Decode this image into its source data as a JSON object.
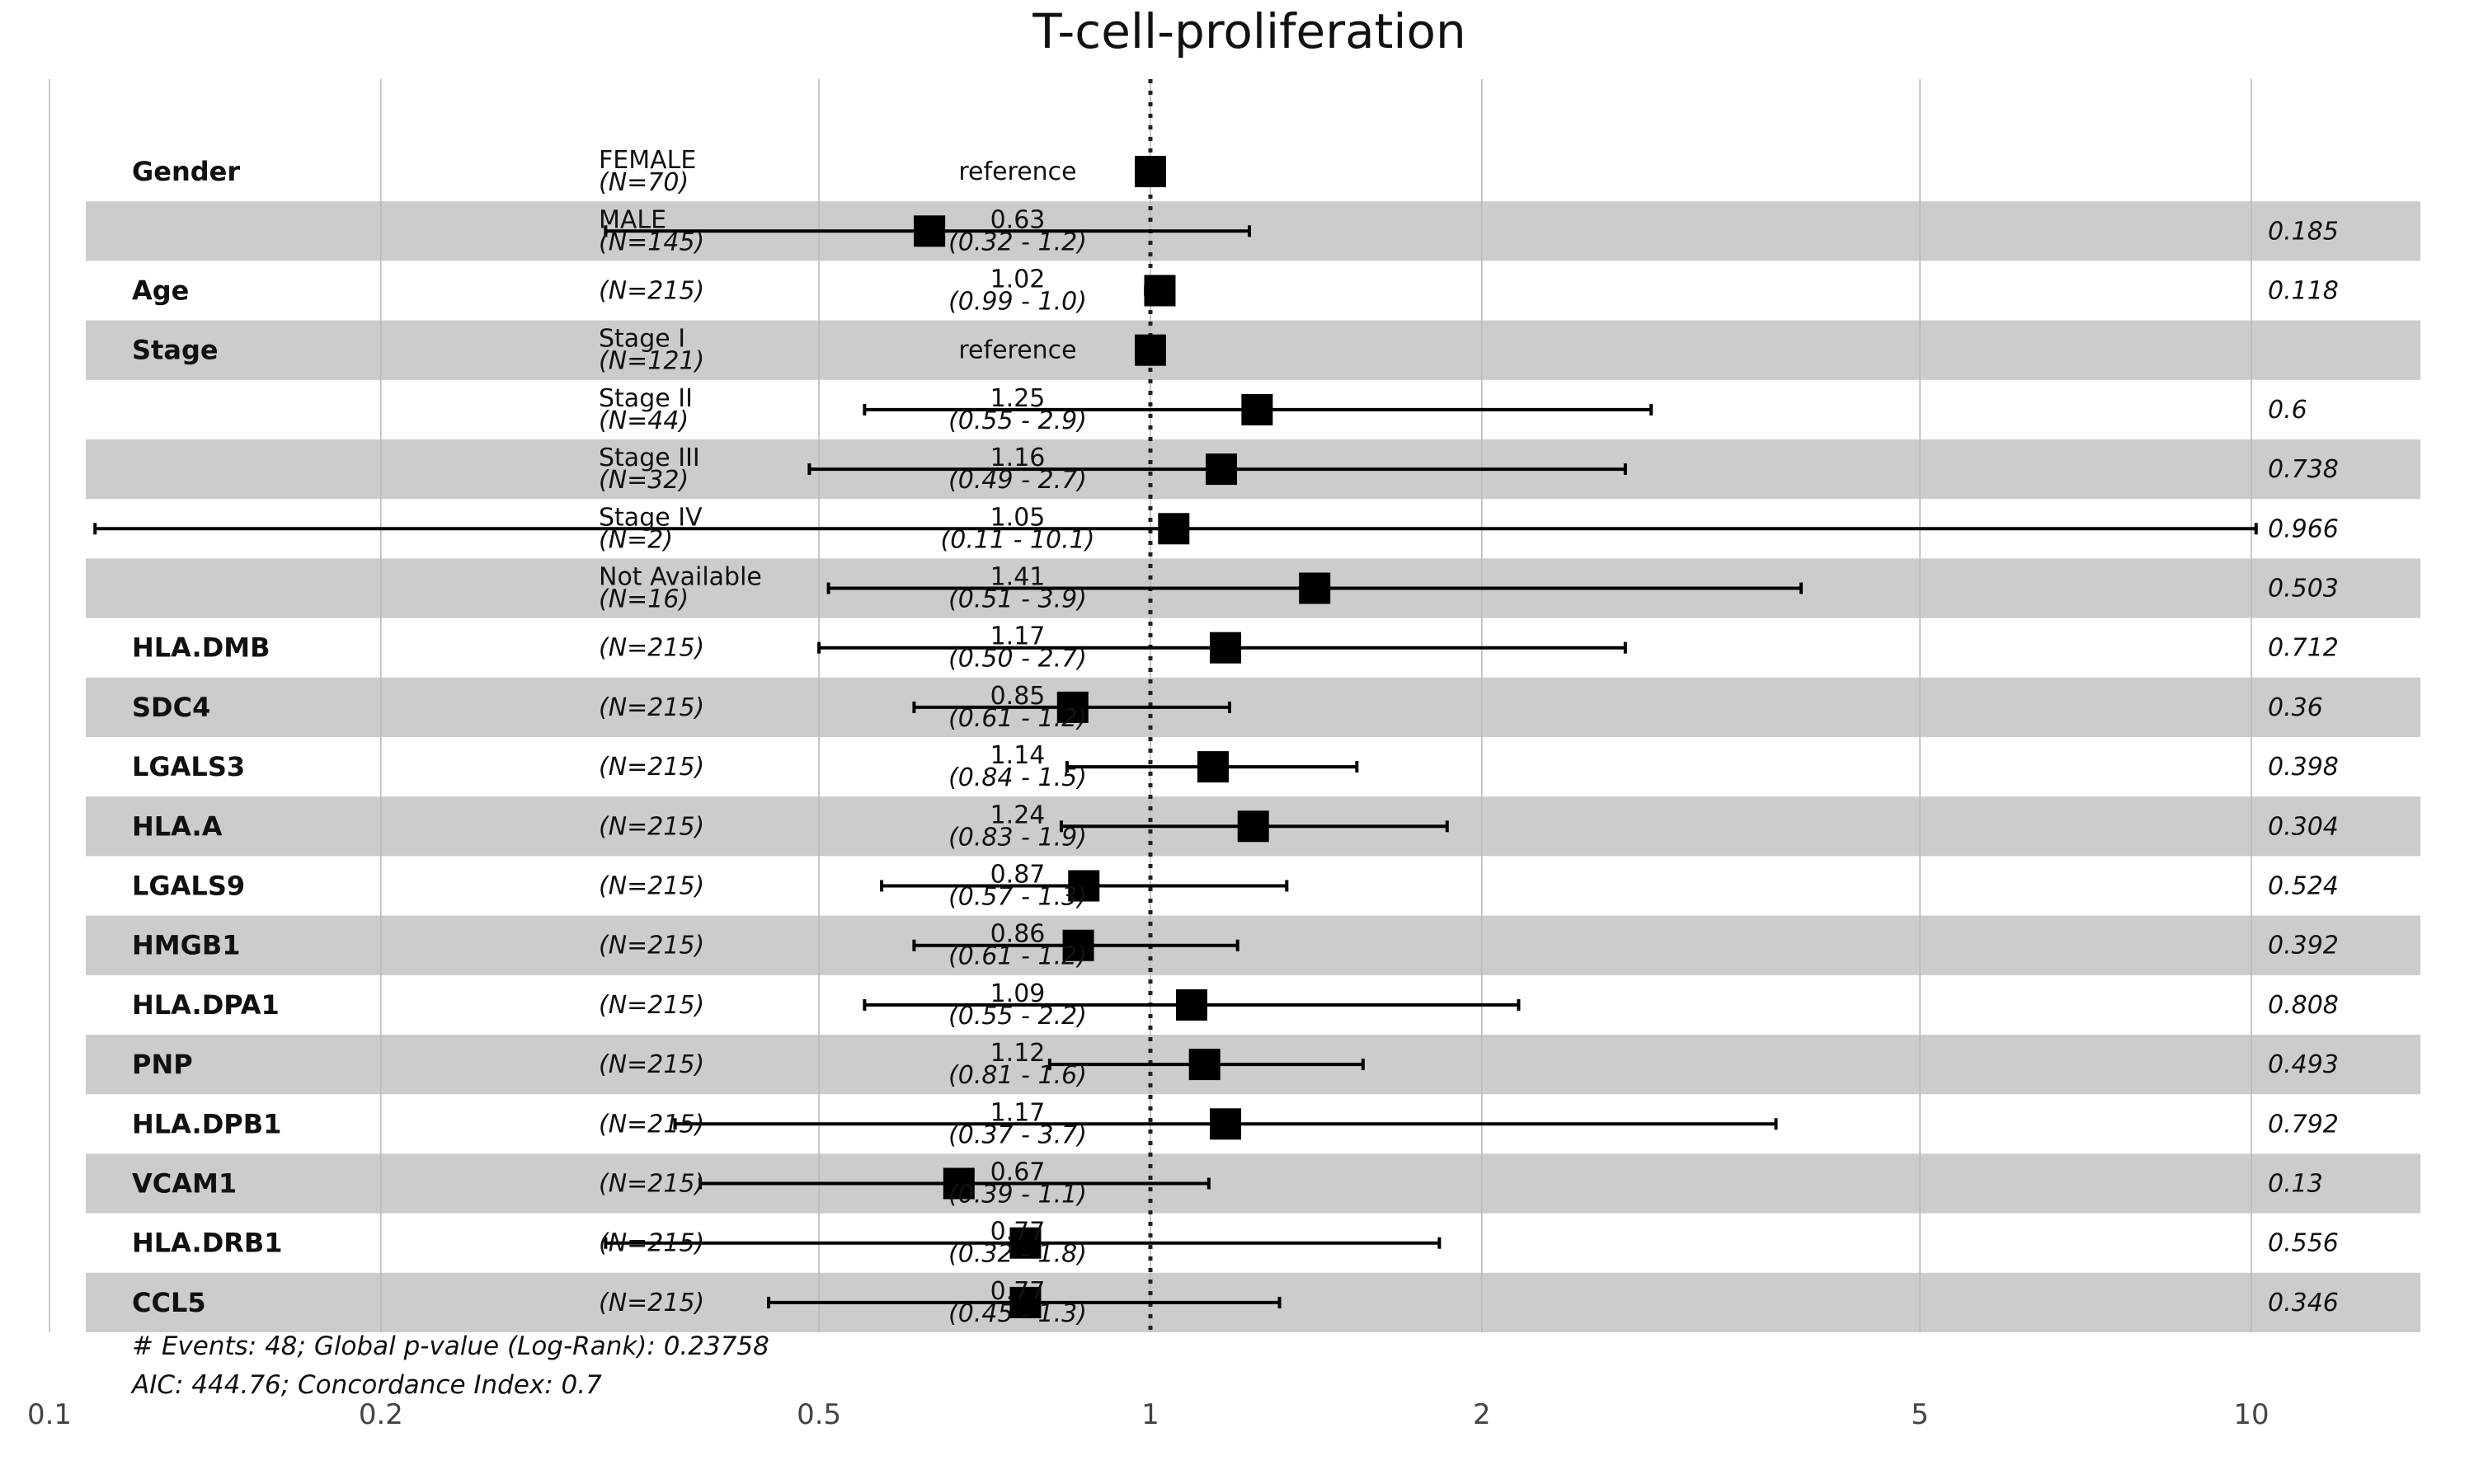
{
  "chart_data": {
    "type": "forest",
    "title": "T-cell-proliferation",
    "x_scale": "log",
    "xlim": [
      0.1,
      20
    ],
    "reference_line": 1,
    "x_ticks": [
      0.1,
      0.2,
      0.5,
      1,
      2,
      5,
      10
    ],
    "x_tick_labels": [
      "0.1",
      "0.2",
      "0.5",
      "1",
      "2",
      "5",
      "10"
    ],
    "rows": [
      {
        "var": "Gender",
        "level": "FEMALE",
        "n": "(N=70)",
        "hr_text": "reference",
        "ci_text": "",
        "p": "",
        "hr": 1.0,
        "lo": null,
        "hi": null,
        "reference": true
      },
      {
        "var": "",
        "level": "MALE",
        "n": "(N=145)",
        "hr_text": "0.63",
        "ci_text": "(0.32 -  1.2)",
        "p": "0.185",
        "hr": 0.63,
        "lo": 0.32,
        "hi": 1.23,
        "reference": false
      },
      {
        "var": "Age",
        "level": "",
        "n": "(N=215)",
        "hr_text": "1.02",
        "ci_text": "(0.99 -  1.0)",
        "p": "0.118",
        "hr": 1.02,
        "lo": 0.99,
        "hi": 1.04,
        "reference": false
      },
      {
        "var": "Stage",
        "level": "Stage I",
        "n": "(N=121)",
        "hr_text": "reference",
        "ci_text": "",
        "p": "",
        "hr": 1.0,
        "lo": null,
        "hi": null,
        "reference": true
      },
      {
        "var": "",
        "level": "Stage II",
        "n": "(N=44)",
        "hr_text": "1.25",
        "ci_text": "(0.55 -  2.9)",
        "p": "0.6",
        "hr": 1.25,
        "lo": 0.55,
        "hi": 2.85,
        "reference": false
      },
      {
        "var": "",
        "level": "Stage III",
        "n": "(N=32)",
        "hr_text": "1.16",
        "ci_text": "(0.49 -  2.7)",
        "p": "0.738",
        "hr": 1.16,
        "lo": 0.49,
        "hi": 2.7,
        "reference": false
      },
      {
        "var": "",
        "level": "Stage IV",
        "n": "(N=2)",
        "hr_text": "1.05",
        "ci_text": "(0.11 - 10.1)",
        "p": "0.966",
        "hr": 1.05,
        "lo": 0.11,
        "hi": 10.1,
        "reference": false
      },
      {
        "var": "",
        "level": "Not Available",
        "n": "(N=16)",
        "hr_text": "1.41",
        "ci_text": "(0.51 -  3.9)",
        "p": "0.503",
        "hr": 1.41,
        "lo": 0.51,
        "hi": 3.9,
        "reference": false
      },
      {
        "var": "HLA.DMB",
        "level": "",
        "n": "(N=215)",
        "hr_text": "1.17",
        "ci_text": "(0.50 -  2.7)",
        "p": "0.712",
        "hr": 1.17,
        "lo": 0.5,
        "hi": 2.7,
        "reference": false
      },
      {
        "var": "SDC4",
        "level": "",
        "n": "(N=215)",
        "hr_text": "0.85",
        "ci_text": "(0.61 -  1.2)",
        "p": "0.36",
        "hr": 0.85,
        "lo": 0.61,
        "hi": 1.18,
        "reference": false
      },
      {
        "var": "LGALS3",
        "level": "",
        "n": "(N=215)",
        "hr_text": "1.14",
        "ci_text": "(0.84 -  1.5)",
        "p": "0.398",
        "hr": 1.14,
        "lo": 0.84,
        "hi": 1.54,
        "reference": false
      },
      {
        "var": "HLA.A",
        "level": "",
        "n": "(N=215)",
        "hr_text": "1.24",
        "ci_text": "(0.83 -  1.9)",
        "p": "0.304",
        "hr": 1.24,
        "lo": 0.83,
        "hi": 1.86,
        "reference": false
      },
      {
        "var": "LGALS9",
        "level": "",
        "n": "(N=215)",
        "hr_text": "0.87",
        "ci_text": "(0.57 -  1.3)",
        "p": "0.524",
        "hr": 0.87,
        "lo": 0.57,
        "hi": 1.33,
        "reference": false
      },
      {
        "var": "HMGB1",
        "level": "",
        "n": "(N=215)",
        "hr_text": "0.86",
        "ci_text": "(0.61 -  1.2)",
        "p": "0.392",
        "hr": 0.86,
        "lo": 0.61,
        "hi": 1.2,
        "reference": false
      },
      {
        "var": "HLA.DPA1",
        "level": "",
        "n": "(N=215)",
        "hr_text": "1.09",
        "ci_text": "(0.55 -  2.2)",
        "p": "0.808",
        "hr": 1.09,
        "lo": 0.55,
        "hi": 2.16,
        "reference": false
      },
      {
        "var": "PNP",
        "level": "",
        "n": "(N=215)",
        "hr_text": "1.12",
        "ci_text": "(0.81 -  1.6)",
        "p": "0.493",
        "hr": 1.12,
        "lo": 0.81,
        "hi": 1.56,
        "reference": false
      },
      {
        "var": "HLA.DPB1",
        "level": "",
        "n": "(N=215)",
        "hr_text": "1.17",
        "ci_text": "(0.37 -  3.7)",
        "p": "0.792",
        "hr": 1.17,
        "lo": 0.37,
        "hi": 3.7,
        "reference": false
      },
      {
        "var": "VCAM1",
        "level": "",
        "n": "(N=215)",
        "hr_text": "0.67",
        "ci_text": "(0.39 -  1.1)",
        "p": "0.13",
        "hr": 0.67,
        "lo": 0.39,
        "hi": 1.13,
        "reference": false
      },
      {
        "var": "HLA.DRB1",
        "level": "",
        "n": "(N=215)",
        "hr_text": "0.77",
        "ci_text": "(0.32 -  1.8)",
        "p": "0.556",
        "hr": 0.77,
        "lo": 0.32,
        "hi": 1.83,
        "reference": false
      },
      {
        "var": "CCL5",
        "level": "",
        "n": "(N=215)",
        "hr_text": "0.77",
        "ci_text": "(0.45 -  1.3)",
        "p": "0.346",
        "hr": 0.77,
        "lo": 0.45,
        "hi": 1.31,
        "reference": false
      }
    ],
    "footnote_1": "# Events: 48; Global p-value (Log-Rank): 0.23758",
    "footnote_2": "AIC: 444.76; Concordance Index: 0.7"
  }
}
